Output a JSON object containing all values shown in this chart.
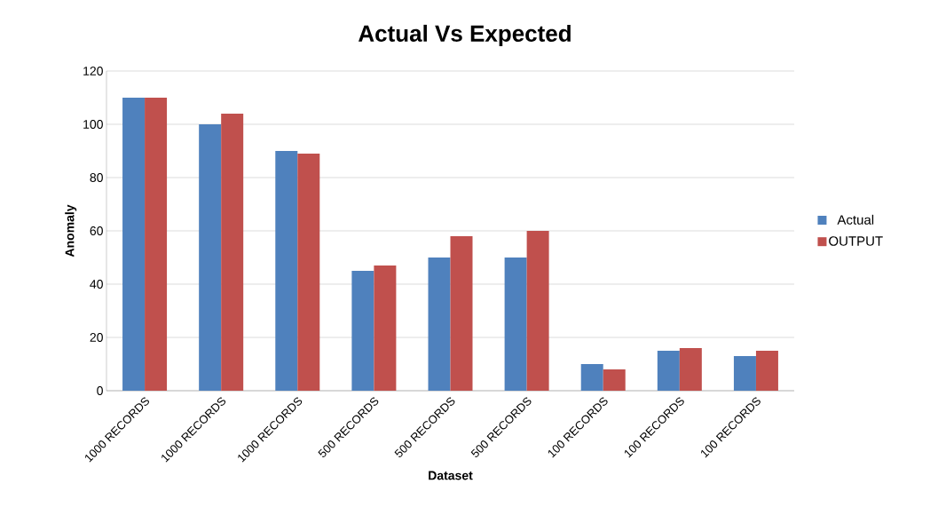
{
  "chart_data": {
    "type": "bar",
    "title": "Actual Vs Expected",
    "xlabel": "Dataset",
    "ylabel": "Anomaly",
    "categories": [
      "1000 RECORDS",
      "1000 RECORDS",
      "1000 RECORDS",
      "500 RECORDS",
      "500 RECORDS",
      "500 RECORDS",
      "100 RECORDS",
      "100 RECORDS",
      "100 RECORDS"
    ],
    "series": [
      {
        "name": "Actual",
        "color": "#4f81bd",
        "values": [
          110,
          100,
          90,
          45,
          50,
          50,
          10,
          15,
          13
        ]
      },
      {
        "name": "OUTPUT",
        "color": "#c0504d",
        "values": [
          110,
          104,
          89,
          47,
          58,
          60,
          8,
          16,
          15
        ]
      }
    ],
    "ylim": [
      0,
      120
    ],
    "yticks": [
      0,
      20,
      40,
      60,
      80,
      100,
      120
    ],
    "grid": "y",
    "legend": "right"
  }
}
